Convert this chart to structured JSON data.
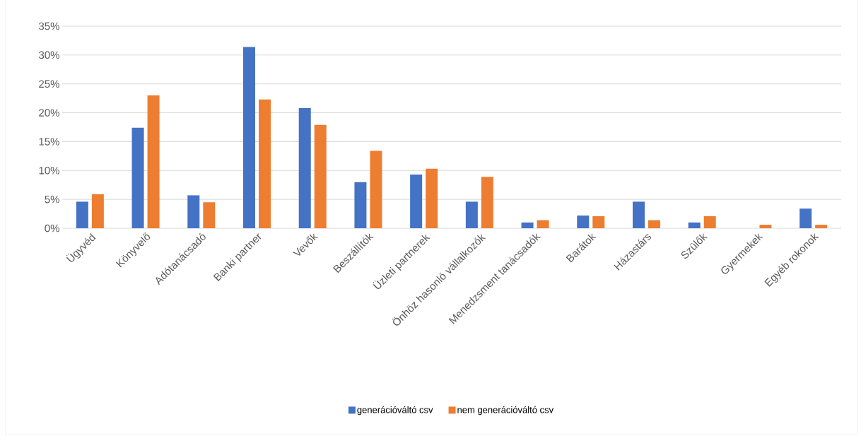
{
  "chart_data": {
    "type": "bar",
    "categories": [
      "Ügyvéd",
      "Könyvelő",
      "Adótanácsadó",
      "Banki partner",
      "Vevők",
      "Beszállítók",
      "Üzleti partnerek",
      "Önhöz hasonló vállalkozók",
      "Menedzsment tanácsadók",
      "Barátok",
      "Házastárs",
      "Szülők",
      "Gyermekek",
      "Egyéb rokonok"
    ],
    "series": [
      {
        "name": "generációváltó csv",
        "color": "#4472c4",
        "values": [
          4.6,
          17.4,
          5.7,
          31.4,
          20.8,
          8.0,
          9.3,
          4.6,
          1.0,
          2.2,
          4.6,
          1.0,
          0,
          3.4
        ]
      },
      {
        "name": "nem generációváltó csv",
        "color": "#ed7d31",
        "values": [
          5.9,
          23.0,
          4.5,
          22.3,
          17.9,
          13.4,
          10.3,
          8.9,
          1.4,
          2.1,
          1.4,
          2.1,
          0.6,
          0.6
        ]
      }
    ],
    "ylim": [
      0,
      35
    ],
    "yticks": [
      {
        "value": 0,
        "label": "0%"
      },
      {
        "value": 5,
        "label": "5%"
      },
      {
        "value": 10,
        "label": "10%"
      },
      {
        "value": 15,
        "label": "15%"
      },
      {
        "value": 20,
        "label": "20%"
      },
      {
        "value": 25,
        "label": "25%"
      },
      {
        "value": 30,
        "label": "30%"
      },
      {
        "value": 35,
        "label": "35%"
      }
    ],
    "grid": "y",
    "legend": "bottom"
  }
}
